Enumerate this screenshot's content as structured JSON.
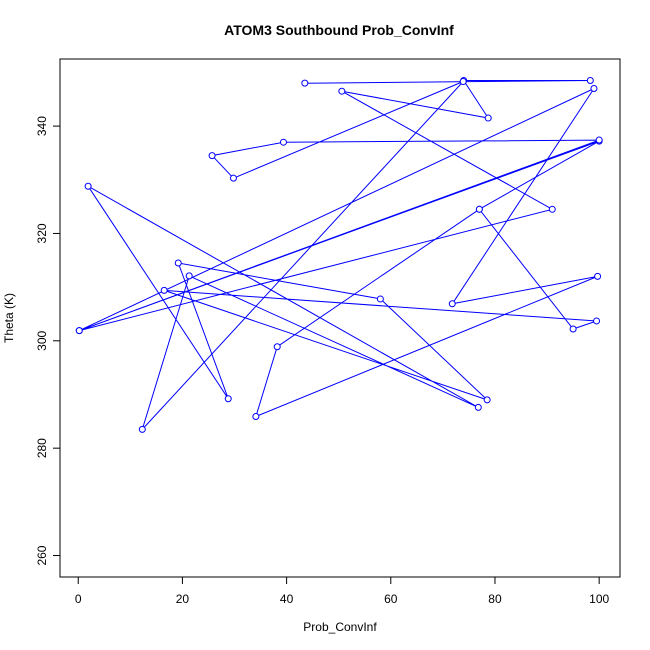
{
  "chart_data": {
    "type": "line",
    "title": "ATOM3 Southbound Prob_ConvInf",
    "xlabel": "Prob_ConvInf",
    "ylabel": "Theta (K)",
    "xlim": [
      -3.5,
      104
    ],
    "ylim": [
      256,
      352.5
    ],
    "xticks": [
      0,
      20,
      40,
      60,
      80,
      100
    ],
    "yticks": [
      260,
      280,
      300,
      320,
      340
    ],
    "grid": false,
    "line_color": "#0000ff",
    "marker": "open-circle",
    "series": [
      {
        "x": [
          43.5,
          98.3,
          74,
          78.7,
          50.6,
          91,
          0.2,
          100,
          77,
          95,
          99.5,
          16.5,
          78.5,
          58,
          19.2,
          28.8,
          1.9,
          76.8,
          21.3,
          12.3,
          73.9,
          29.8,
          25.7,
          39.4,
          100,
          0.2,
          99,
          71.8,
          99.7,
          34.1,
          38.2,
          77
        ],
        "y": [
          348,
          348.5,
          348.5,
          341.5,
          346.5,
          324.5,
          301.9,
          337.2,
          324.5,
          302.2,
          303.7,
          309.4,
          289,
          307.8,
          314.5,
          289.2,
          328.8,
          287.6,
          312.1,
          283.5,
          348.3,
          330.3,
          334.5,
          337,
          337.4,
          301.9,
          347,
          306.9,
          312,
          285.9,
          298.9,
          324.5
        ]
      }
    ]
  }
}
